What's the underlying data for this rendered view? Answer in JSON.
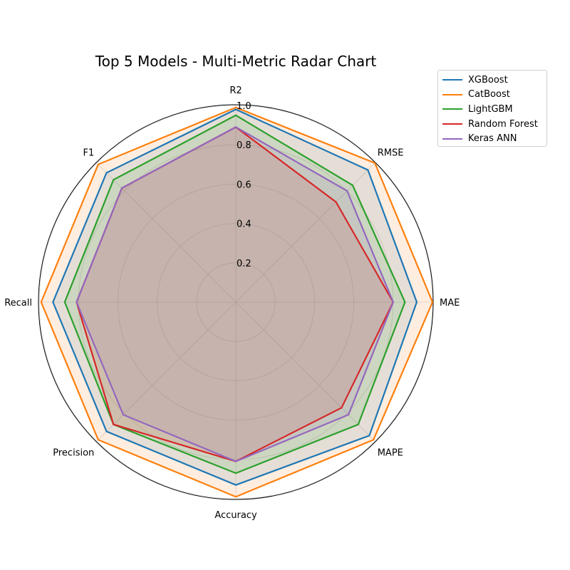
{
  "chart_data": {
    "type": "radar",
    "title": "Top 5 Models - Multi-Metric Radar Chart",
    "axes": [
      "R2",
      "RMSE",
      "MAE",
      "MAPE",
      "Accuracy",
      "Precision",
      "Recall",
      "F1"
    ],
    "rlim": [
      0,
      1.0
    ],
    "rticks": [
      "0.2",
      "0.4",
      "0.6",
      "0.8",
      "1.0"
    ],
    "grid": true,
    "legend_position": "upper-right, outside",
    "series": [
      {
        "name": "XGBoost",
        "color": "#1f77b4",
        "values": [
          0.98,
          0.95,
          0.92,
          0.96,
          0.93,
          0.93,
          0.93,
          0.93
        ]
      },
      {
        "name": "CatBoost",
        "color": "#ff7f0e",
        "values": [
          0.99,
          1.0,
          1.0,
          0.99,
          0.99,
          0.99,
          0.99,
          0.99
        ]
      },
      {
        "name": "LightGBM",
        "color": "#2ca02c",
        "values": [
          0.95,
          0.84,
          0.86,
          0.88,
          0.87,
          0.88,
          0.87,
          0.88
        ]
      },
      {
        "name": "Random Forest",
        "color": "#d62728",
        "values": [
          0.89,
          0.72,
          0.8,
          0.76,
          0.81,
          0.88,
          0.81,
          0.82
        ]
      },
      {
        "name": "Keras ANN",
        "color": "#9467bd",
        "values": [
          0.89,
          0.8,
          0.8,
          0.81,
          0.81,
          0.81,
          0.81,
          0.82
        ]
      }
    ]
  }
}
